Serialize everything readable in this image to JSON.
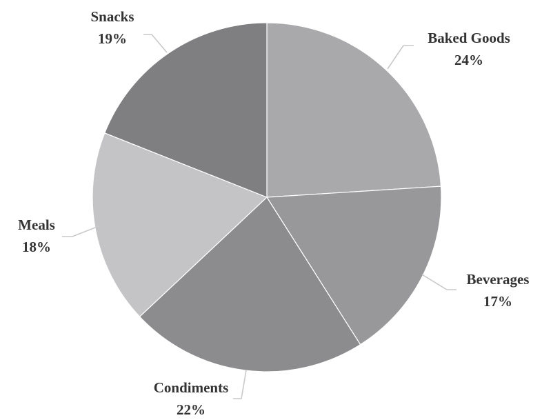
{
  "chart_data": {
    "type": "pie",
    "title": "",
    "categories": [
      "Baked Goods",
      "Beverages",
      "Condiments",
      "Meals",
      "Snacks"
    ],
    "values": [
      24,
      17,
      22,
      18,
      19
    ],
    "value_labels": [
      "24%",
      "17%",
      "22%",
      "18%",
      "19%"
    ],
    "colors": [
      "#a9a9ab",
      "#98989a",
      "#8c8c8e",
      "#c4c4c6",
      "#7f7f81"
    ],
    "start_angle_deg": 0,
    "direction": "clockwise",
    "legend": "none",
    "labels": "outside with leader lines"
  }
}
